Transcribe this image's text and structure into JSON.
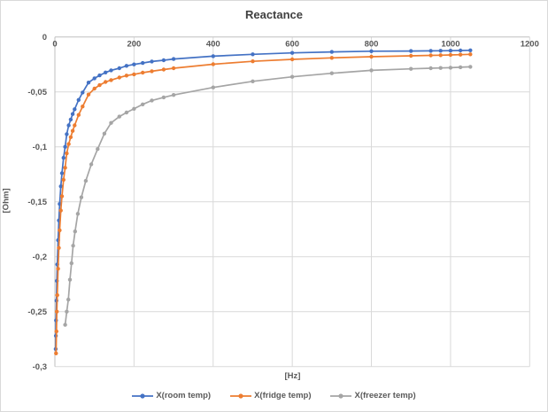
{
  "title": "Reactance",
  "x_axis": {
    "title": "[Hz]",
    "ticks": [
      0,
      200,
      400,
      600,
      800,
      1000,
      1200
    ],
    "tick_labels": [
      "0",
      "200",
      "400",
      "600",
      "800",
      "1000",
      "1200"
    ],
    "min": 0,
    "max": 1200
  },
  "y_axis": {
    "title": "[Ohm]",
    "ticks": [
      0,
      -0.05,
      -0.1,
      -0.15,
      -0.2,
      -0.25,
      -0.3
    ],
    "tick_labels": [
      "0",
      "-0,05",
      "-0,1",
      "-0,15",
      "-0,2",
      "-0,25",
      "-0,3"
    ],
    "min": -0.3,
    "max": 0
  },
  "legend": {
    "items": [
      {
        "label": "X(room temp)",
        "color": "#4472C4"
      },
      {
        "label": "X(fridge temp)",
        "color": "#ED7D31"
      },
      {
        "label": "X(freezer temp)",
        "color": "#A5A5A5"
      }
    ]
  },
  "colors": {
    "series_room": "#4472C4",
    "series_fridge": "#ED7D31",
    "series_freezer": "#A5A5A5",
    "gridline": "#D9D9D9",
    "axis_line": "#BFBFBF",
    "text": "#595959",
    "title_text": "#404040",
    "background": "#FFFFFF"
  },
  "chart_data": {
    "type": "line",
    "title": "Reactance",
    "xlabel": "[Hz]",
    "ylabel": "[Ohm]",
    "xlim": [
      0,
      1200
    ],
    "ylim": [
      -0.3,
      0
    ],
    "grid": true,
    "legend_position": "bottom",
    "marker": "circle",
    "series": [
      {
        "name": "X(room temp)",
        "color": "#4472C4",
        "points": [
          [
            2,
            -0.284
          ],
          [
            2.5,
            -0.272
          ],
          [
            3,
            -0.258
          ],
          [
            4,
            -0.24
          ],
          [
            5,
            -0.222
          ],
          [
            6,
            -0.207
          ],
          [
            8,
            -0.185
          ],
          [
            10,
            -0.167
          ],
          [
            12,
            -0.152
          ],
          [
            15,
            -0.136
          ],
          [
            18,
            -0.124
          ],
          [
            22,
            -0.11
          ],
          [
            26,
            -0.1
          ],
          [
            30,
            -0.0885
          ],
          [
            35,
            -0.0805
          ],
          [
            40,
            -0.0752
          ],
          [
            45,
            -0.0702
          ],
          [
            50,
            -0.0658
          ],
          [
            60,
            -0.0573
          ],
          [
            70,
            -0.0506
          ],
          [
            85,
            -0.0415
          ],
          [
            100,
            -0.0377
          ],
          [
            113,
            -0.035
          ],
          [
            128,
            -0.0323
          ],
          [
            142,
            -0.0304
          ],
          [
            163,
            -0.0285
          ],
          [
            181,
            -0.0263
          ],
          [
            200,
            -0.025
          ],
          [
            222,
            -0.0237
          ],
          [
            245,
            -0.0223
          ],
          [
            275,
            -0.0212
          ],
          [
            300,
            -0.0201
          ],
          [
            400,
            -0.0175
          ],
          [
            500,
            -0.0158
          ],
          [
            600,
            -0.0145
          ],
          [
            700,
            -0.0136
          ],
          [
            800,
            -0.013
          ],
          [
            900,
            -0.0128
          ],
          [
            950,
            -0.0127
          ],
          [
            975,
            -0.0126
          ],
          [
            1000,
            -0.0125
          ],
          [
            1025,
            -0.0123
          ],
          [
            1050,
            -0.0122
          ]
        ]
      },
      {
        "name": "X(fridge temp)",
        "color": "#ED7D31",
        "points": [
          [
            3,
            -0.288
          ],
          [
            4,
            -0.268
          ],
          [
            5,
            -0.25
          ],
          [
            6,
            -0.235
          ],
          [
            8,
            -0.211
          ],
          [
            10,
            -0.192
          ],
          [
            12,
            -0.176
          ],
          [
            15,
            -0.158
          ],
          [
            18,
            -0.145
          ],
          [
            22,
            -0.13
          ],
          [
            26,
            -0.119
          ],
          [
            30,
            -0.106
          ],
          [
            35,
            -0.0975
          ],
          [
            40,
            -0.0912
          ],
          [
            45,
            -0.0855
          ],
          [
            50,
            -0.0805
          ],
          [
            60,
            -0.071
          ],
          [
            70,
            -0.0633
          ],
          [
            85,
            -0.0524
          ],
          [
            100,
            -0.047
          ],
          [
            113,
            -0.0439
          ],
          [
            128,
            -0.041
          ],
          [
            142,
            -0.0393
          ],
          [
            163,
            -0.0369
          ],
          [
            181,
            -0.0352
          ],
          [
            200,
            -0.034
          ],
          [
            222,
            -0.0325
          ],
          [
            245,
            -0.0312
          ],
          [
            275,
            -0.0297
          ],
          [
            300,
            -0.0285
          ],
          [
            400,
            -0.0248
          ],
          [
            500,
            -0.0222
          ],
          [
            600,
            -0.0204
          ],
          [
            700,
            -0.019
          ],
          [
            800,
            -0.018
          ],
          [
            900,
            -0.0172
          ],
          [
            950,
            -0.0168
          ],
          [
            975,
            -0.0166
          ],
          [
            1000,
            -0.0164
          ],
          [
            1025,
            -0.0161
          ],
          [
            1050,
            -0.0158
          ]
        ]
      },
      {
        "name": "X(freezer temp)",
        "color": "#A5A5A5",
        "points": [
          [
            26,
            -0.262
          ],
          [
            30,
            -0.25
          ],
          [
            34,
            -0.239
          ],
          [
            38,
            -0.221
          ],
          [
            42,
            -0.206
          ],
          [
            46,
            -0.19
          ],
          [
            51,
            -0.177
          ],
          [
            58,
            -0.161
          ],
          [
            67,
            -0.146
          ],
          [
            78,
            -0.131
          ],
          [
            92,
            -0.116
          ],
          [
            108,
            -0.102
          ],
          [
            125,
            -0.088
          ],
          [
            142,
            -0.0782
          ],
          [
            163,
            -0.0725
          ],
          [
            181,
            -0.0688
          ],
          [
            200,
            -0.0654
          ],
          [
            222,
            -0.0614
          ],
          [
            245,
            -0.0578
          ],
          [
            275,
            -0.055
          ],
          [
            300,
            -0.0528
          ],
          [
            400,
            -0.046
          ],
          [
            500,
            -0.0404
          ],
          [
            600,
            -0.0363
          ],
          [
            700,
            -0.0331
          ],
          [
            800,
            -0.0304
          ],
          [
            900,
            -0.029
          ],
          [
            950,
            -0.0285
          ],
          [
            975,
            -0.0282
          ],
          [
            1000,
            -0.028
          ],
          [
            1025,
            -0.0276
          ],
          [
            1050,
            -0.0272
          ]
        ]
      }
    ]
  }
}
